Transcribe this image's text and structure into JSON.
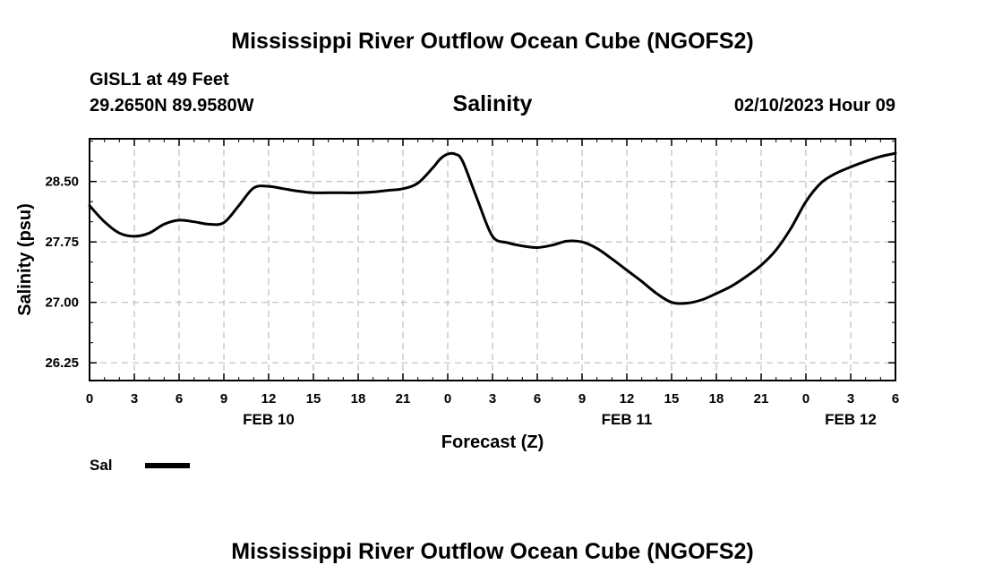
{
  "header": {
    "title": "Mississippi River Outflow Ocean Cube (NGOFS2)",
    "station": "GISL1 at 49 Feet",
    "coords": "29.2650N  89.9580W",
    "datetime": "02/10/2023 Hour 09"
  },
  "footer": {
    "title": "Mississippi River Outflow Ocean Cube (NGOFS2)"
  },
  "chart_data": {
    "type": "line",
    "title": "Salinity",
    "xlabel": "Forecast (Z)",
    "ylabel": "Salinity (psu)",
    "xlim": [
      0,
      54
    ],
    "ylim": [
      26.03,
      29.03
    ],
    "grid": true,
    "x_ticks": [
      {
        "x": 0,
        "label": "0"
      },
      {
        "x": 3,
        "label": "3"
      },
      {
        "x": 6,
        "label": "6"
      },
      {
        "x": 9,
        "label": "9"
      },
      {
        "x": 12,
        "label": "12"
      },
      {
        "x": 15,
        "label": "15"
      },
      {
        "x": 18,
        "label": "18"
      },
      {
        "x": 21,
        "label": "21"
      },
      {
        "x": 24,
        "label": "0"
      },
      {
        "x": 27,
        "label": "3"
      },
      {
        "x": 30,
        "label": "6"
      },
      {
        "x": 33,
        "label": "9"
      },
      {
        "x": 36,
        "label": "12"
      },
      {
        "x": 39,
        "label": "15"
      },
      {
        "x": 42,
        "label": "18"
      },
      {
        "x": 45,
        "label": "21"
      },
      {
        "x": 48,
        "label": "0"
      },
      {
        "x": 51,
        "label": "3"
      },
      {
        "x": 54,
        "label": "6"
      }
    ],
    "date_labels": [
      {
        "x": 12,
        "label": "FEB 10"
      },
      {
        "x": 36,
        "label": "FEB 11"
      },
      {
        "x": 51,
        "label": "FEB 12"
      }
    ],
    "y_ticks": [
      {
        "y": 26.25,
        "label": "26.25"
      },
      {
        "y": 27.0,
        "label": "27.00"
      },
      {
        "y": 27.75,
        "label": "27.75"
      },
      {
        "y": 28.5,
        "label": "28.50"
      }
    ],
    "legend": {
      "position": "bottom-left",
      "entries": [
        {
          "name": "Sal"
        }
      ]
    },
    "series": [
      {
        "name": "Sal",
        "color": "#000000",
        "x": [
          0,
          1,
          2,
          3,
          4,
          5,
          6,
          7,
          8,
          9,
          10,
          11,
          12,
          13,
          14,
          15,
          16,
          17,
          18,
          19,
          20,
          21,
          22,
          23,
          23.5,
          24,
          24.5,
          25,
          26,
          27,
          28,
          29,
          30,
          31,
          32,
          33,
          34,
          35,
          36,
          37,
          38,
          39,
          40,
          41,
          42,
          43,
          44,
          45,
          46,
          47,
          48,
          49,
          50,
          51,
          52,
          53,
          54
        ],
        "values": [
          28.2,
          28.0,
          27.86,
          27.82,
          27.86,
          27.97,
          28.02,
          28.0,
          27.97,
          27.99,
          28.2,
          28.42,
          28.44,
          28.41,
          28.38,
          28.36,
          28.36,
          28.36,
          28.36,
          28.37,
          28.39,
          28.41,
          28.48,
          28.67,
          28.78,
          28.84,
          28.84,
          28.75,
          28.27,
          27.82,
          27.74,
          27.7,
          27.68,
          27.71,
          27.76,
          27.75,
          27.67,
          27.54,
          27.4,
          27.26,
          27.11,
          27.0,
          26.99,
          27.03,
          27.11,
          27.2,
          27.32,
          27.46,
          27.65,
          27.92,
          28.25,
          28.48,
          28.6,
          28.68,
          28.75,
          28.81,
          28.85
        ]
      }
    ]
  }
}
